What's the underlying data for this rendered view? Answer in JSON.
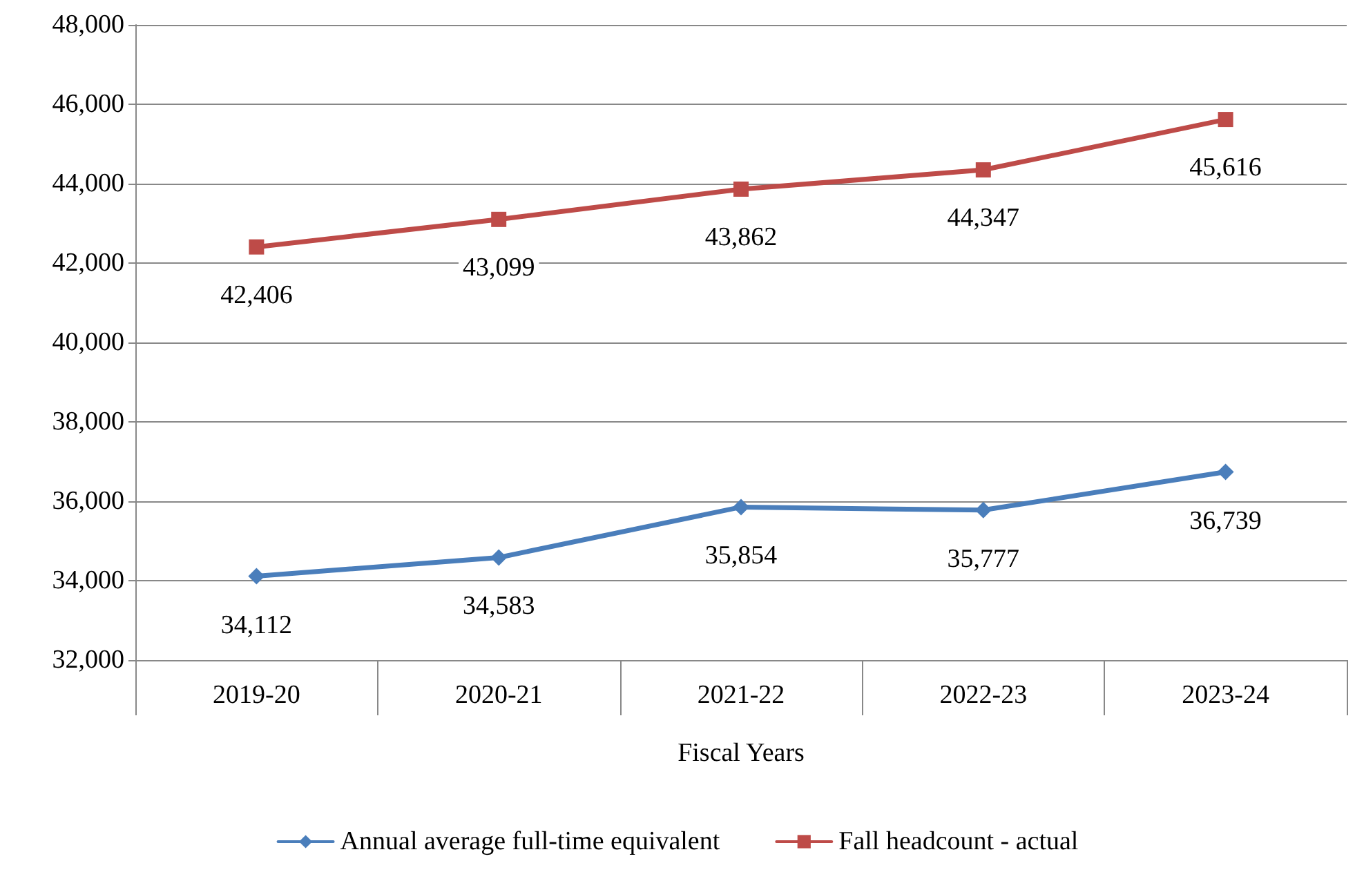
{
  "chart_data": {
    "type": "line",
    "xlabel": "Fiscal Years",
    "categories": [
      "2019-20",
      "2020-21",
      "2021-22",
      "2022-23",
      "2023-24"
    ],
    "series": [
      {
        "name": "Annual average full-time equivalent",
        "color": "#4a7ebb",
        "marker": "diamond",
        "values": [
          34112,
          34583,
          35854,
          35777,
          36739
        ],
        "value_labels": [
          "34,112",
          "34,583",
          "35,854",
          "35,777",
          "36,739"
        ]
      },
      {
        "name": "Fall headcount - actual",
        "color": "#be4b48",
        "marker": "square",
        "values": [
          42406,
          43099,
          43862,
          44347,
          45616
        ],
        "value_labels": [
          "42,406",
          "43,099",
          "43,862",
          "44,347",
          "45,616"
        ]
      }
    ],
    "ylim": [
      32000,
      48000
    ],
    "yticks": [
      {
        "value": 32000,
        "label": "32,000"
      },
      {
        "value": 34000,
        "label": "34,000"
      },
      {
        "value": 36000,
        "label": "36,000"
      },
      {
        "value": 38000,
        "label": "38,000"
      },
      {
        "value": 40000,
        "label": "40,000"
      },
      {
        "value": 42000,
        "label": "42,000"
      },
      {
        "value": 44000,
        "label": "44,000"
      },
      {
        "value": 46000,
        "label": "46,000"
      },
      {
        "value": 48000,
        "label": "48,000"
      }
    ],
    "grid": "y",
    "legend": "bottom",
    "line_style": "solid"
  }
}
